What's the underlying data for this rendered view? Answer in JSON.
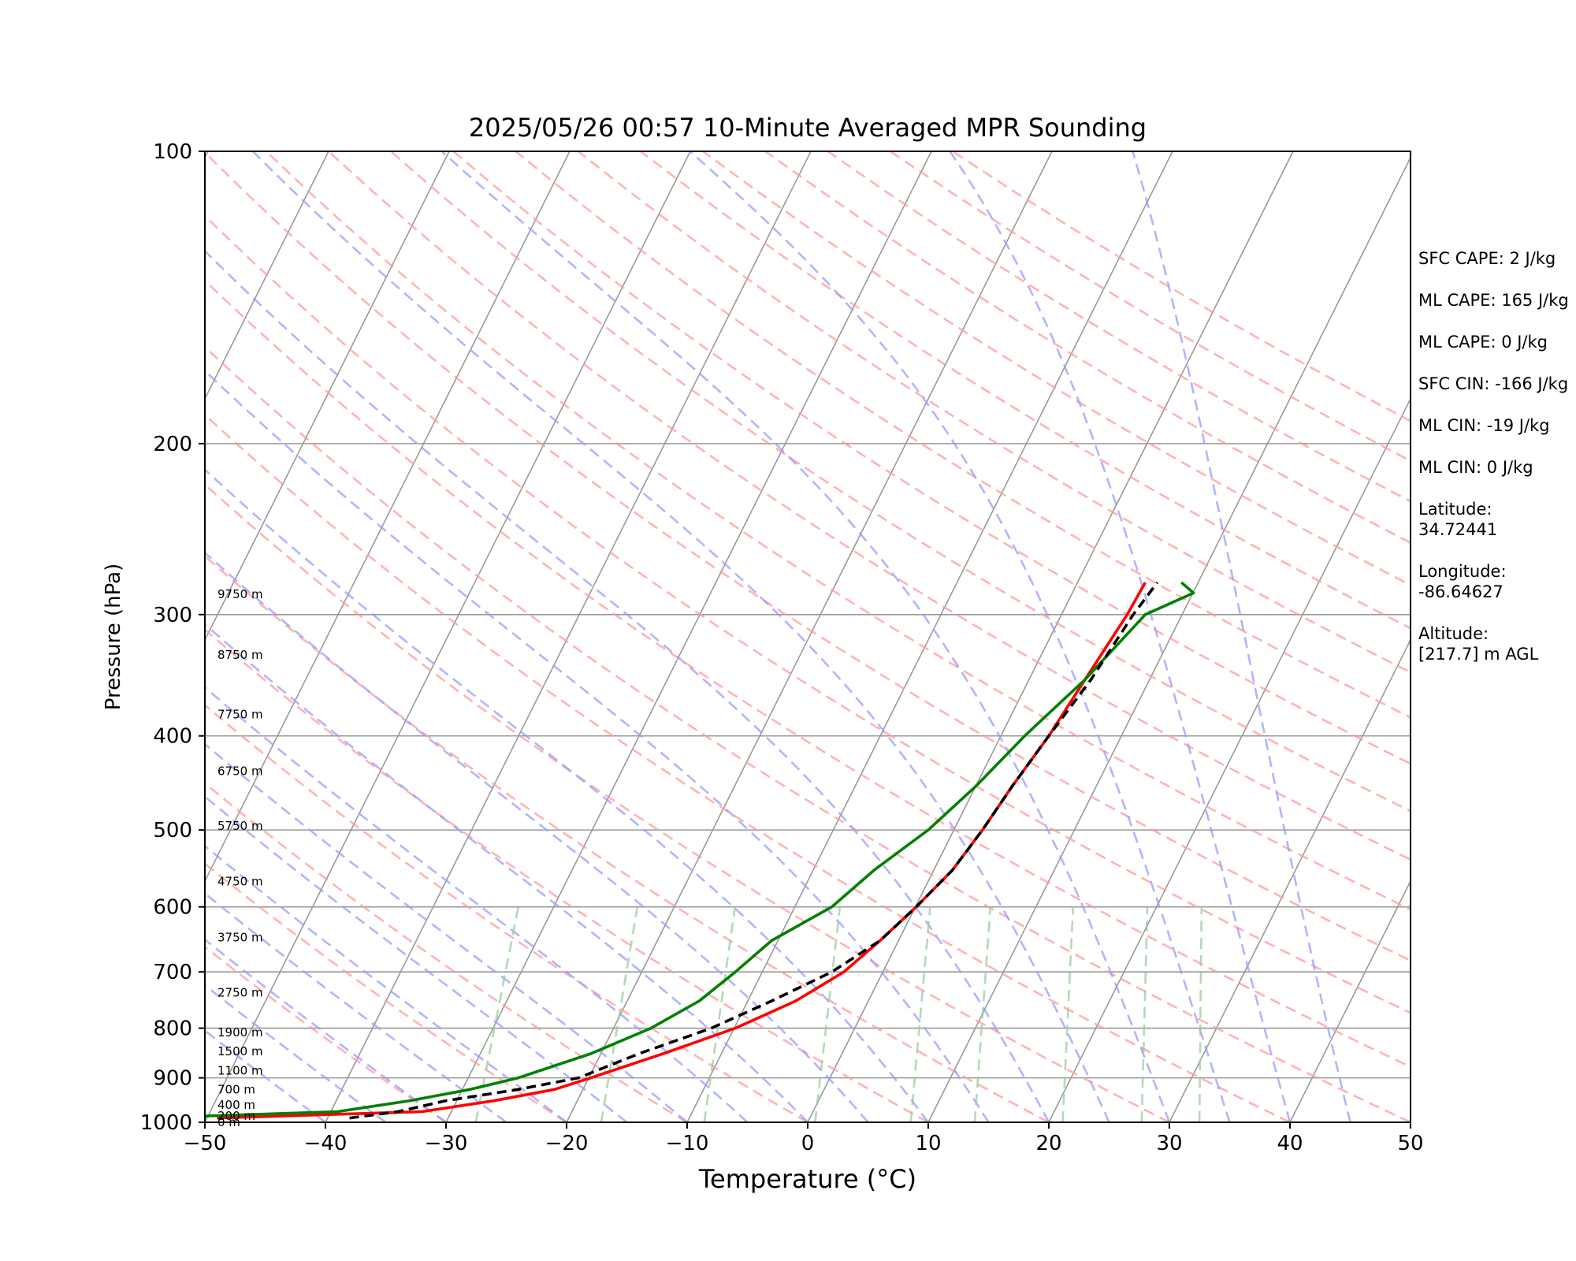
{
  "chart_data": {
    "type": "line",
    "title": "2025/05/26 00:57 10-Minute Averaged MPR Sounding",
    "xlabel": "Temperature (°C)",
    "ylabel": "Pressure (hPa)",
    "xlim": [
      -50,
      50
    ],
    "ylim": [
      1000,
      100
    ],
    "y_scale": "log",
    "skew_degrees_per_decade_equiv": 45,
    "xticks": [
      "−50",
      "−40",
      "−30",
      "−20",
      "−10",
      "0",
      "10",
      "20",
      "30",
      "40",
      "50"
    ],
    "yticks": [
      "100",
      "200",
      "300",
      "400",
      "500",
      "600",
      "700",
      "800",
      "900",
      "1000"
    ],
    "height_labels": [
      {
        "p": 1000,
        "text": "0 m"
      },
      {
        "p": 985,
        "text": "200 m"
      },
      {
        "p": 960,
        "text": "400 m"
      },
      {
        "p": 925,
        "text": "700 m"
      },
      {
        "p": 885,
        "text": "1100 m"
      },
      {
        "p": 845,
        "text": "1500 m"
      },
      {
        "p": 808,
        "text": "1900 m"
      },
      {
        "p": 735,
        "text": "2750 m"
      },
      {
        "p": 645,
        "text": "3750 m"
      },
      {
        "p": 565,
        "text": "4750 m"
      },
      {
        "p": 495,
        "text": "5750 m"
      },
      {
        "p": 435,
        "text": "6750 m"
      },
      {
        "p": 380,
        "text": "7750 m"
      },
      {
        "p": 330,
        "text": "8750 m"
      },
      {
        "p": 286,
        "text": "9750 m"
      }
    ],
    "series": [
      {
        "color": "#ff0000",
        "style": "solid",
        "points": [
          [
            990,
            -49
          ],
          [
            975,
            -32
          ],
          [
            950,
            -26
          ],
          [
            925,
            -21
          ],
          [
            900,
            -18
          ],
          [
            850,
            -12
          ],
          [
            800,
            -6
          ],
          [
            750,
            -1
          ],
          [
            700,
            3
          ],
          [
            650,
            6
          ],
          [
            600,
            9
          ],
          [
            550,
            12
          ],
          [
            500,
            14.5
          ],
          [
            450,
            17
          ],
          [
            400,
            20
          ],
          [
            350,
            23
          ],
          [
            300,
            26.5
          ],
          [
            278,
            28
          ]
        ]
      },
      {
        "color": "#008000",
        "style": "solid",
        "points": [
          [
            990,
            -55
          ],
          [
            975,
            -39
          ],
          [
            950,
            -33
          ],
          [
            925,
            -28
          ],
          [
            900,
            -24
          ],
          [
            850,
            -18
          ],
          [
            800,
            -13
          ],
          [
            750,
            -9
          ],
          [
            700,
            -6
          ],
          [
            650,
            -3
          ],
          [
            600,
            2
          ],
          [
            550,
            5.5
          ],
          [
            500,
            10
          ],
          [
            450,
            14
          ],
          [
            400,
            18
          ],
          [
            350,
            23
          ],
          [
            300,
            28
          ],
          [
            285,
            32
          ],
          [
            278,
            31
          ]
        ]
      },
      {
        "color": "#000000",
        "style": "dashed",
        "points": [
          [
            990,
            -38
          ],
          [
            975,
            -34
          ],
          [
            950,
            -30
          ],
          [
            925,
            -24
          ],
          [
            900,
            -19
          ],
          [
            850,
            -14
          ],
          [
            800,
            -8
          ],
          [
            750,
            -3
          ],
          [
            700,
            2
          ],
          [
            650,
            6
          ],
          [
            600,
            9
          ],
          [
            550,
            12
          ],
          [
            500,
            14.5
          ],
          [
            450,
            17
          ],
          [
            400,
            20
          ],
          [
            350,
            23.5
          ],
          [
            300,
            27
          ],
          [
            278,
            29
          ]
        ]
      }
    ],
    "grid_isobars": [
      100,
      200,
      300,
      400,
      500,
      600,
      700,
      800,
      900,
      1000
    ],
    "dry_adiabat_color": "#ff9999",
    "moist_adiabat_color": "#9999ff",
    "mixing_ratio_color": "#99cc99",
    "isotherm_color": "#999999"
  },
  "side_panel": {
    "sfc_cape": "SFC CAPE: 2 J/kg",
    "ml_cape": "ML CAPE: 165 J/kg",
    "ml_cape2": "ML CAPE: 0 J/kg",
    "sfc_cin": "SFC CIN: -166 J/kg",
    "ml_cin": "ML CIN: -19 J/kg",
    "ml_cin2": "ML CIN: 0 J/kg",
    "lat_label": "Latitude:",
    "lat_value": "34.72441",
    "lon_label": "Longitude:",
    "lon_value": "-86.64627",
    "alt_label": "Altitude:",
    "alt_value": "[217.7] m AGL"
  }
}
